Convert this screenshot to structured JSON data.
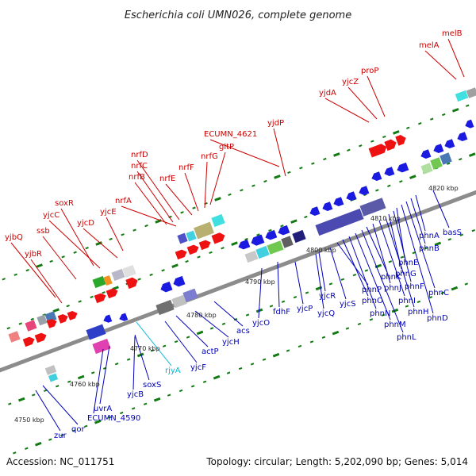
{
  "title": "Escherichia coli UMN026, complete genome",
  "footer": {
    "accession": "Accession: NC_011751",
    "summary": "Topology: circular; Length: 5,202,090 bp; Genes: 5,014"
  },
  "colors": {
    "backbone": "#8c8c8c",
    "top_label": "#cc0000",
    "bottom_label": "#0000bb",
    "rna_label": "#00b8d8",
    "tick": "#117a11"
  },
  "kbp_labels": [
    "4750 kbp",
    "4760 kbp",
    "4770 kbp",
    "4780 kbp",
    "4790 kbp",
    "4800 kbp",
    "4810 kbp",
    "4820 kbp"
  ],
  "top_genes": [
    "yjbQ",
    "yjbR",
    "ssb",
    "soxR",
    "yjcC",
    "yjcD",
    "yjcE",
    "nrfA",
    "nrfB",
    "nrfC",
    "nrfD",
    "nrfE",
    "nrfF",
    "nrfG",
    "gltP",
    "ECUMN_4621",
    "yjdP",
    "yjdA",
    "yjcZ",
    "proP",
    "melA",
    "melB"
  ],
  "bottom_genes": [
    "zur",
    "qor",
    "ECUMN_4590",
    "uvrA",
    "yjcB",
    "soxS",
    "rjyA",
    "yjcF",
    "actP",
    "yjcH",
    "acs",
    "yjcO",
    "fdhF",
    "yjcP",
    "yjcQ",
    "yjcR",
    "yjcS",
    "phnP",
    "phnO",
    "phnN",
    "phnM",
    "phnL",
    "phnK",
    "phnJ",
    "phnI",
    "phnH",
    "phnG",
    "phnF",
    "phnE",
    "phnD",
    "phnC",
    "phnB",
    "phnA",
    "basS"
  ]
}
